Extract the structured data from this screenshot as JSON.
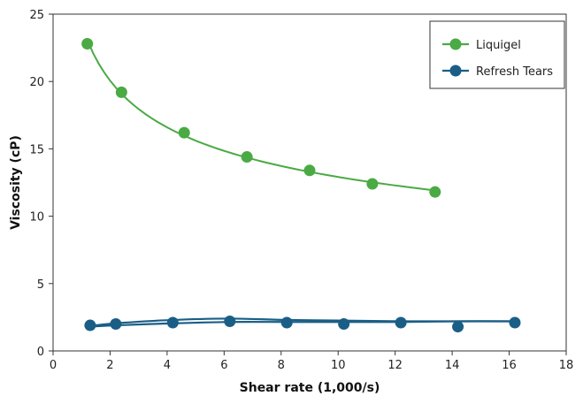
{
  "chart_data": {
    "type": "scatter",
    "xlabel": "Shear rate (1,000/s)",
    "ylabel": "Viscosity (cP)",
    "xlim": [
      0,
      18
    ],
    "ylim": [
      0,
      25
    ],
    "x_ticks": [
      "0",
      "2",
      "4",
      "6",
      "8",
      "10",
      "12",
      "14",
      "16",
      "18"
    ],
    "y_ticks": [
      "0",
      "5",
      "10",
      "15",
      "20",
      "25"
    ],
    "legend_position": "top-right",
    "grid": false,
    "series": [
      {
        "name": "Liquigel",
        "color": "#4aaa44",
        "x": [
          1.2,
          2.4,
          4.6,
          6.8,
          9.0,
          11.2,
          13.4
        ],
        "y": [
          22.8,
          19.2,
          16.2,
          14.4,
          13.4,
          12.4,
          11.8
        ],
        "trendline": "power"
      },
      {
        "name": "Refresh Tears",
        "color": "#1a5e86",
        "x": [
          1.3,
          2.2,
          4.2,
          6.2,
          8.2,
          10.2,
          12.2,
          14.2,
          16.2
        ],
        "y": [
          1.9,
          2.0,
          2.1,
          2.2,
          2.1,
          2.0,
          2.1,
          1.8,
          2.1
        ],
        "trendlines": [
          {
            "x": [
              1.3,
              2.2,
              4.2,
              6.2,
              8.2,
              10.2,
              12.2,
              14.2,
              16.2
            ],
            "y": [
              1.85,
              2.05,
              2.3,
              2.4,
              2.3,
              2.25,
              2.2,
              2.2,
              2.2
            ]
          },
          {
            "x": [
              1.3,
              2.2,
              4.2,
              6.2,
              8.2,
              10.2,
              12.2,
              14.2,
              16.2
            ],
            "y": [
              1.8,
              1.9,
              2.05,
              2.15,
              2.15,
              2.15,
              2.15,
              2.2,
              2.2
            ]
          }
        ]
      }
    ]
  }
}
